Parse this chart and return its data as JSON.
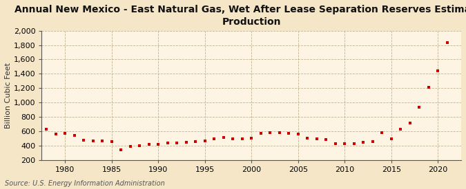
{
  "title": "Annual New Mexico - East Natural Gas, Wet After Lease Separation Reserves Estimated\nProduction",
  "ylabel": "Billion Cubic Feet",
  "source": "Source: U.S. Energy Information Administration",
  "background_color": "#f5e6c8",
  "plot_background_color": "#fdf4e3",
  "marker_color": "#cc0000",
  "years": [
    1978,
    1979,
    1980,
    1981,
    1982,
    1983,
    1984,
    1985,
    1986,
    1987,
    1988,
    1989,
    1990,
    1991,
    1992,
    1993,
    1994,
    1995,
    1996,
    1997,
    1998,
    1999,
    2000,
    2001,
    2002,
    2003,
    2004,
    2005,
    2006,
    2007,
    2008,
    2009,
    2010,
    2011,
    2012,
    2013,
    2014,
    2015,
    2016,
    2017,
    2018,
    2019,
    2020,
    2021
  ],
  "values": [
    630,
    555,
    565,
    540,
    470,
    465,
    460,
    455,
    340,
    390,
    400,
    415,
    415,
    435,
    435,
    445,
    450,
    460,
    490,
    510,
    495,
    495,
    500,
    565,
    575,
    575,
    565,
    560,
    500,
    490,
    485,
    430,
    425,
    430,
    445,
    455,
    580,
    490,
    625,
    710,
    930,
    1210,
    1445,
    1830
  ],
  "ylim": [
    200,
    2000
  ],
  "yticks": [
    200,
    400,
    600,
    800,
    1000,
    1200,
    1400,
    1600,
    1800,
    2000
  ],
  "xlim": [
    1977.5,
    2022.5
  ],
  "xticks": [
    1980,
    1985,
    1990,
    1995,
    2000,
    2005,
    2010,
    2015,
    2020
  ],
  "title_fontsize": 10,
  "label_fontsize": 8,
  "tick_fontsize": 8,
  "source_fontsize": 7
}
